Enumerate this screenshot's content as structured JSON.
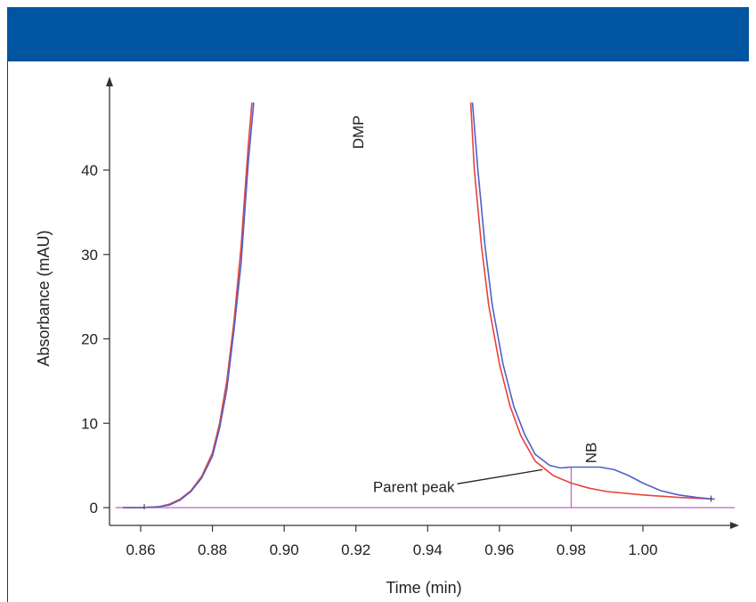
{
  "header": {
    "color": "#0054a0"
  },
  "chart_data": {
    "type": "line",
    "title": "",
    "xlabel": "Time (min)",
    "ylabel": "Absorbance (mAU)",
    "xlim": [
      0.85,
      1.025
    ],
    "ylim": [
      -0.5,
      48
    ],
    "x_ticks": [
      0.86,
      0.88,
      0.9,
      0.92,
      0.94,
      0.96,
      0.98,
      1.0
    ],
    "x_tick_labels": [
      "0.86",
      "0.88",
      "0.90",
      "0.92",
      "0.94",
      "0.96",
      "0.98",
      "1.00"
    ],
    "y_ticks": [
      0,
      10,
      20,
      30,
      40
    ],
    "y_tick_labels": [
      "0",
      "10",
      "20",
      "30",
      "40"
    ],
    "grid": false,
    "legend": "none",
    "series": [
      {
        "color": "#e8413c",
        "x": [
          0.855,
          0.86,
          0.865,
          0.868,
          0.871,
          0.874,
          0.877,
          0.88,
          0.882,
          0.884,
          0.886,
          0.888,
          0.889,
          0.89,
          0.891,
          0.952,
          0.953,
          0.955,
          0.957,
          0.96,
          0.963,
          0.966,
          0.97,
          0.975,
          0.98,
          0.985,
          0.99,
          1.0,
          1.01,
          1.02
        ],
        "y": [
          0,
          0,
          0.1,
          0.4,
          1.0,
          2.0,
          3.7,
          6.5,
          10,
          15,
          22,
          31,
          37,
          43,
          48,
          48,
          40,
          31,
          24,
          17,
          12,
          8.5,
          5.5,
          3.8,
          2.9,
          2.3,
          1.9,
          1.5,
          1.2,
          1.0
        ]
      },
      {
        "color": "#5060c8",
        "x": [
          0.855,
          0.86,
          0.865,
          0.868,
          0.871,
          0.874,
          0.877,
          0.88,
          0.882,
          0.884,
          0.886,
          0.888,
          0.889,
          0.89,
          0.8915,
          0.9525,
          0.954,
          0.956,
          0.958,
          0.961,
          0.964,
          0.967,
          0.97,
          0.974,
          0.977,
          0.98,
          0.984,
          0.988,
          0.992,
          0.996,
          1.0,
          1.005,
          1.01,
          1.015,
          1.02
        ],
        "y": [
          0,
          0,
          0.1,
          0.3,
          0.9,
          1.9,
          3.5,
          6.1,
          9.4,
          14,
          21,
          29,
          35,
          41,
          48,
          48,
          40,
          31,
          24,
          17,
          12,
          8.7,
          6.3,
          5.0,
          4.7,
          4.8,
          4.8,
          4.8,
          4.5,
          3.8,
          2.9,
          2.0,
          1.5,
          1.2,
          1.0
        ]
      }
    ],
    "baseline": {
      "y": 0,
      "color": "#c060c8"
    },
    "marker_line": {
      "x": 0.98,
      "y_top": 4.8,
      "color": "#c060c8"
    },
    "annotations": [
      {
        "text": "DMP",
        "x": 0.922,
        "y": 44.5,
        "rotated": true
      },
      {
        "text": "NB",
        "x": 0.987,
        "y": 6.5,
        "rotated": true
      },
      {
        "text": "Parent peak",
        "x": 0.9475,
        "y": 2.5,
        "arrow_to_x": 0.972,
        "arrow_to_y": 4.5
      }
    ]
  }
}
